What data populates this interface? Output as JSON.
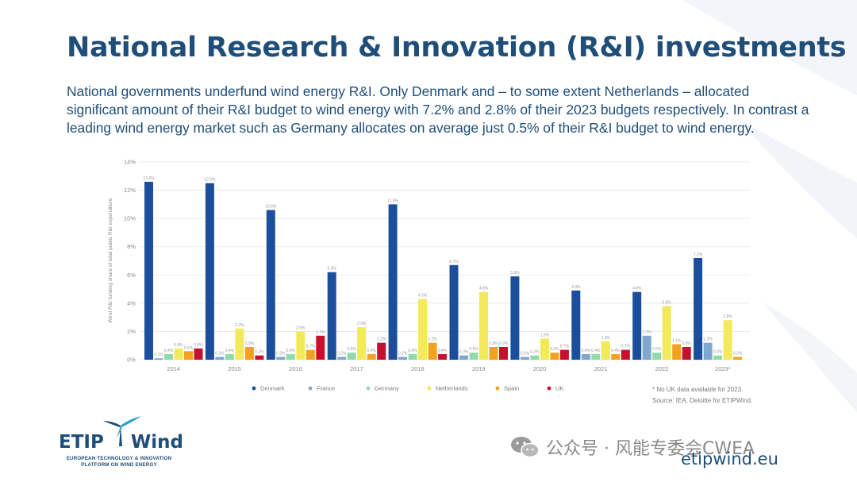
{
  "slide": {
    "title": "National Research & Innovation (R&I) investments",
    "intro": "National governments underfund wind energy R&I. Only Denmark and – to some extent Netherlands – allocated significant amount of their R&I budget to wind energy with 7.2% and 2.8% of their 2023 budgets respectively. In contrast a leading wind energy market such as Germany allocates on average just 0.5% of their R&I budget to wind energy.",
    "footnote": [
      "* No UK data available for 2023.",
      "Source: IEA, Deloitte for ETIPWind."
    ],
    "website": "etipwind.eu",
    "watermark_text": "公众号 · 风能专委会CWEA"
  },
  "logo": {
    "name_left": "ETIP",
    "name_right": "Wind",
    "tagline_line1": "EUROPEAN TECHNOLOGY & INNOVATION",
    "tagline_line2": "PLATFORM ON WIND ENERGY"
  },
  "colors": {
    "title": "#1f4e79",
    "Denmark": "#1b4f9c",
    "France": "#7fa8cf",
    "Germany": "#8fdcaa",
    "Netherlands": "#f3ea5a",
    "Spain": "#f2a21f",
    "UK": "#c8102e"
  },
  "icons": [
    "wind-turbine-icon",
    "wechat-icon"
  ],
  "chart_data": {
    "type": "bar",
    "title": "",
    "ylabel": "Wind R&I funding share of total public R&I expenditure",
    "xlabel": "",
    "ylim": [
      0,
      14
    ],
    "yticks": [
      "0%",
      "2%",
      "4%",
      "6%",
      "8%",
      "10%",
      "12%",
      "14%"
    ],
    "grid": true,
    "legend_position": "bottom",
    "categories": [
      "2014",
      "2015",
      "2016",
      "2017",
      "2018",
      "2019",
      "2020",
      "2021",
      "2022",
      "2023*"
    ],
    "series": [
      {
        "name": "Denmark",
        "values": [
          12.6,
          12.5,
          10.6,
          6.2,
          11.0,
          6.7,
          5.9,
          4.9,
          4.8,
          7.2
        ],
        "labels": [
          "12.6%",
          "12.5%",
          "10.6%",
          "6.2%",
          "11.0%",
          "6.7%",
          "5.9%",
          "4.9%",
          "4.8%",
          "7.2%"
        ]
      },
      {
        "name": "France",
        "values": [
          0.1,
          0.2,
          0.2,
          0.2,
          0.2,
          0.3,
          0.2,
          0.4,
          1.7,
          1.2
        ],
        "labels": [
          "0.1%",
          "0.2%",
          "0.2%",
          "0.2%",
          "0.2%",
          "0.3%",
          "0.2%",
          "0.4%",
          "1.7%",
          "1.2%"
        ]
      },
      {
        "name": "Germany",
        "values": [
          0.4,
          0.4,
          0.4,
          0.5,
          0.4,
          0.5,
          0.3,
          0.4,
          0.5,
          0.3
        ],
        "labels": [
          "0.4%",
          "0.4%",
          "0.4%",
          "0.5%",
          "0.4%",
          "0.5%",
          "0.3%",
          "0.4%",
          "0.5%",
          "0.3%"
        ]
      },
      {
        "name": "Netherlands",
        "values": [
          0.8,
          2.2,
          2.0,
          2.3,
          4.3,
          4.8,
          1.5,
          1.3,
          3.8,
          2.8
        ],
        "labels": [
          "0.8%",
          "2.2%",
          "2.0%",
          "2.3%",
          "4.3%",
          "4.8%",
          "1.5%",
          "1.3%",
          "3.8%",
          "2.8%"
        ]
      },
      {
        "name": "Spain",
        "values": [
          0.6,
          0.9,
          0.7,
          0.4,
          1.2,
          0.9,
          0.5,
          0.4,
          1.1,
          0.2
        ],
        "labels": [
          "0.6%",
          "0.9%",
          "0.7%",
          "0.4%",
          "1.2%",
          "0.9%",
          "0.5%",
          "0.4%",
          "1.1%",
          "0.2%"
        ]
      },
      {
        "name": "UK",
        "values": [
          0.8,
          0.3,
          1.7,
          1.2,
          0.4,
          0.9,
          0.7,
          0.7,
          0.9,
          0
        ],
        "labels": [
          "0.8%",
          "0.3%",
          "1.7%",
          "1.2%",
          "0.4%",
          "0.9%",
          "0.7%",
          "0.7%",
          "0.9%",
          ""
        ]
      }
    ]
  }
}
